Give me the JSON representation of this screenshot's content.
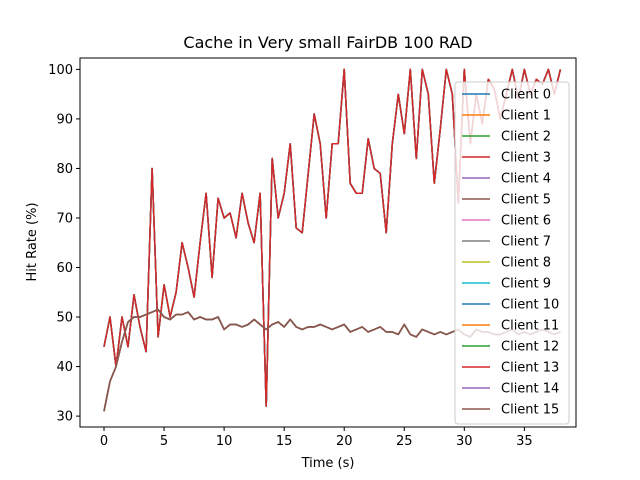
{
  "chart_data": {
    "type": "line",
    "title": "Cache in Very small FairDB 100 RAD",
    "xlabel": "Time (s)",
    "ylabel": "Hit Rate (%)",
    "xlim": [
      -2,
      39.3
    ],
    "ylim": [
      27.8,
      102.3
    ],
    "xticks": [
      0,
      5,
      10,
      15,
      20,
      25,
      30,
      35
    ],
    "yticks": [
      30,
      40,
      50,
      60,
      70,
      80,
      90,
      100
    ],
    "grid": false,
    "legend_position": "right",
    "x": [
      0,
      0.5,
      1,
      1.5,
      2,
      2.5,
      3,
      3.5,
      4,
      4.5,
      5,
      5.5,
      6,
      6.5,
      7,
      7.5,
      8,
      8.5,
      9,
      9.5,
      10,
      10.5,
      11,
      11.5,
      12,
      12.5,
      13,
      13.5,
      14,
      14.5,
      15,
      15.5,
      16,
      16.5,
      17,
      17.5,
      18,
      18.5,
      19,
      19.5,
      20,
      20.5,
      21,
      21.5,
      22,
      22.5,
      23,
      23.5,
      24,
      24.5,
      25,
      25.5,
      26,
      26.5,
      27,
      27.5,
      28,
      28.5,
      29,
      29.5,
      30,
      30.5,
      31,
      31.5,
      32,
      32.5,
      33,
      33.5,
      34,
      34.5,
      35,
      35.5,
      36,
      36.5,
      37,
      37.5,
      38
    ],
    "upper_pattern": [
      44,
      50,
      40,
      50,
      44,
      54.5,
      48,
      43,
      80,
      46,
      56.5,
      50,
      55,
      65,
      60,
      54,
      65,
      75,
      58,
      74,
      70,
      71,
      66,
      75,
      69,
      65,
      75,
      32,
      82,
      70,
      75,
      85,
      68,
      67,
      79,
      91,
      85,
      70,
      85,
      85,
      100,
      77,
      75,
      75,
      86,
      80,
      79,
      67,
      85,
      95,
      87,
      100,
      82,
      100,
      95,
      77,
      88,
      100,
      95,
      73,
      100,
      85,
      95,
      89,
      98,
      96,
      90,
      95,
      100,
      94,
      100,
      95,
      98,
      97,
      100,
      95,
      100
    ],
    "lower_pattern": [
      31,
      37,
      40,
      45,
      49,
      50,
      50,
      50.5,
      51,
      51.5,
      50,
      49.5,
      50.5,
      50.5,
      51,
      49.5,
      50,
      49.5,
      49.5,
      50,
      47.5,
      48.5,
      48.5,
      48,
      48.5,
      49.5,
      48.5,
      47.5,
      48.5,
      49,
      48,
      49.5,
      48,
      47.5,
      48,
      48,
      48.5,
      48,
      47.5,
      48,
      48.5,
      47,
      47.5,
      48,
      47,
      47.5,
      48,
      47,
      47,
      46.5,
      48.5,
      46.5,
      46,
      47.5,
      47,
      46.5,
      47,
      46.5,
      47,
      47.5,
      46.5,
      46,
      47.5,
      47,
      47,
      46.5,
      46.5,
      47,
      47.5,
      46.5,
      47,
      46.5,
      47,
      47.5,
      47,
      46.5,
      47
    ],
    "series": [
      {
        "name": "Client 0",
        "color": "#1f77b4",
        "group": "upper"
      },
      {
        "name": "Client 1",
        "color": "#ff7f0e",
        "group": "lower"
      },
      {
        "name": "Client 2",
        "color": "#2ca02c",
        "group": "upper"
      },
      {
        "name": "Client 3",
        "color": "#d62728",
        "group": "upper"
      },
      {
        "name": "Client 4",
        "color": "#9467bd",
        "group": "lower"
      },
      {
        "name": "Client 5",
        "color": "#8c564b",
        "group": "upper"
      },
      {
        "name": "Client 6",
        "color": "#e377c2",
        "group": "lower"
      },
      {
        "name": "Client 7",
        "color": "#7f7f7f",
        "group": "upper"
      },
      {
        "name": "Client 8",
        "color": "#bcbd22",
        "group": "lower"
      },
      {
        "name": "Client 9",
        "color": "#17becf",
        "group": "upper"
      },
      {
        "name": "Client 10",
        "color": "#1f77b4",
        "group": "lower"
      },
      {
        "name": "Client 11",
        "color": "#ff7f0e",
        "group": "lower"
      },
      {
        "name": "Client 12",
        "color": "#2ca02c",
        "group": "lower"
      },
      {
        "name": "Client 13",
        "color": "#d62728",
        "group": "upper"
      },
      {
        "name": "Client 14",
        "color": "#9467bd",
        "group": "lower"
      },
      {
        "name": "Client 15",
        "color": "#8c564b",
        "group": "lower"
      }
    ]
  }
}
